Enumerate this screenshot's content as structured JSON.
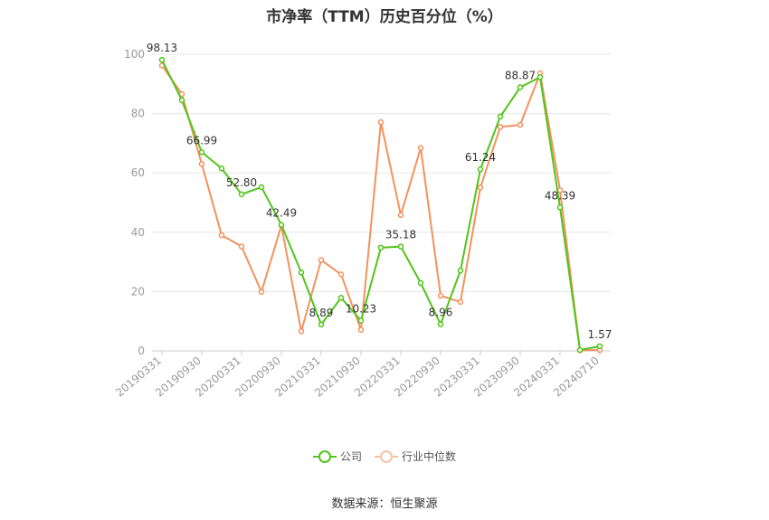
{
  "chart_data": {
    "type": "line",
    "title": "市净率（TTM）历史百分位（%）",
    "x_tick_labels": [
      "20190331",
      "20190930",
      "20200331",
      "20200930",
      "20210331",
      "20210930",
      "20220331",
      "20220930",
      "20230331",
      "20230930",
      "20240331",
      "20240710"
    ],
    "y_ticks": [
      0,
      20,
      40,
      60,
      80,
      100
    ],
    "ylim": [
      0,
      100
    ],
    "grid": true,
    "legend_position": "bottom",
    "series": [
      {
        "name": "公司",
        "color": "#52c41a",
        "values": [
          98.13,
          84.5,
          66.99,
          61.5,
          52.8,
          55.2,
          42.49,
          26.4,
          8.89,
          17.9,
          10.23,
          34.8,
          35.18,
          22.9,
          8.96,
          27.1,
          61.24,
          79.0,
          88.87,
          92.3,
          48.39,
          0.3,
          1.57
        ],
        "data_labels": [
          {
            "index": 0,
            "text": "98.13"
          },
          {
            "index": 2,
            "text": "66.99"
          },
          {
            "index": 4,
            "text": "52.80"
          },
          {
            "index": 6,
            "text": "42.49"
          },
          {
            "index": 8,
            "text": "8.89"
          },
          {
            "index": 10,
            "text": "10.23"
          },
          {
            "index": 12,
            "text": "35.18"
          },
          {
            "index": 14,
            "text": "8.96"
          },
          {
            "index": 16,
            "text": "61.24"
          },
          {
            "index": 18,
            "text": "88.87"
          },
          {
            "index": 20,
            "text": "48.39"
          },
          {
            "index": 22,
            "text": "1.57"
          }
        ]
      },
      {
        "name": "行业中位数",
        "color": "#f4915e",
        "values": [
          96.2,
          86.6,
          63.0,
          39.0,
          35.2,
          19.9,
          42.3,
          6.6,
          30.6,
          25.8,
          7.1,
          77.1,
          45.8,
          68.4,
          18.6,
          16.5,
          55.1,
          75.5,
          76.2,
          93.6,
          54.2,
          0.2,
          0.3
        ]
      }
    ]
  },
  "source_text": "数据来源：恒生聚源"
}
